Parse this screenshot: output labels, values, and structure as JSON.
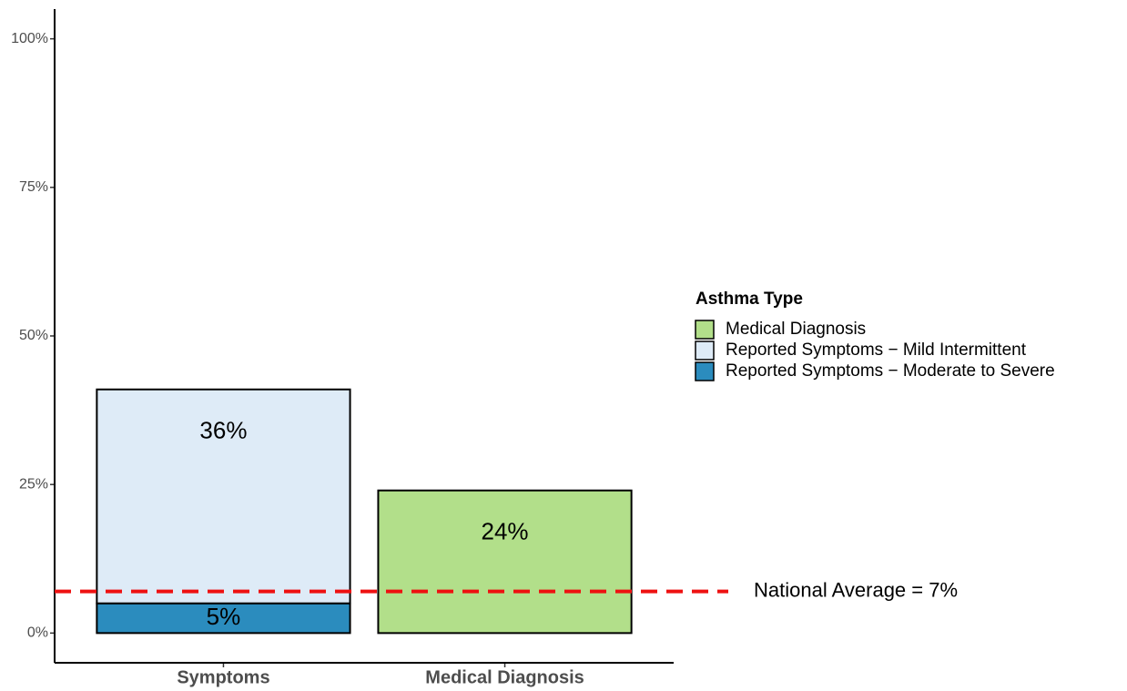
{
  "chart_data": {
    "type": "stacked_bar",
    "categories": [
      "Symptoms",
      "Medical Diagnosis"
    ],
    "series": [
      {
        "name": "Medical Diagnosis",
        "color": "#b2df8a",
        "values": [
          null,
          24
        ],
        "value_labels": [
          null,
          "24%"
        ]
      },
      {
        "name": "Reported Symptoms − Mild Intermittent",
        "color": "#deebf7",
        "values": [
          36,
          null
        ],
        "value_labels": [
          "36%",
          null
        ]
      },
      {
        "name": "Reported Symptoms − Moderate to Severe",
        "color": "#2b8cbe",
        "values": [
          5,
          null
        ],
        "value_labels": [
          "5%",
          null
        ]
      }
    ],
    "legend_title": "Asthma Type",
    "legend_position": "right",
    "ylim": [
      -5,
      105
    ],
    "yticks": [
      {
        "value": 0,
        "label": "0%"
      },
      {
        "value": 25,
        "label": "25%"
      },
      {
        "value": 50,
        "label": "50%"
      },
      {
        "value": 75,
        "label": "75%"
      },
      {
        "value": 100,
        "label": "100%"
      }
    ],
    "reference_line": {
      "value": 7,
      "label": "National Average = 7%",
      "color": "#ee1111"
    },
    "grid": false
  }
}
